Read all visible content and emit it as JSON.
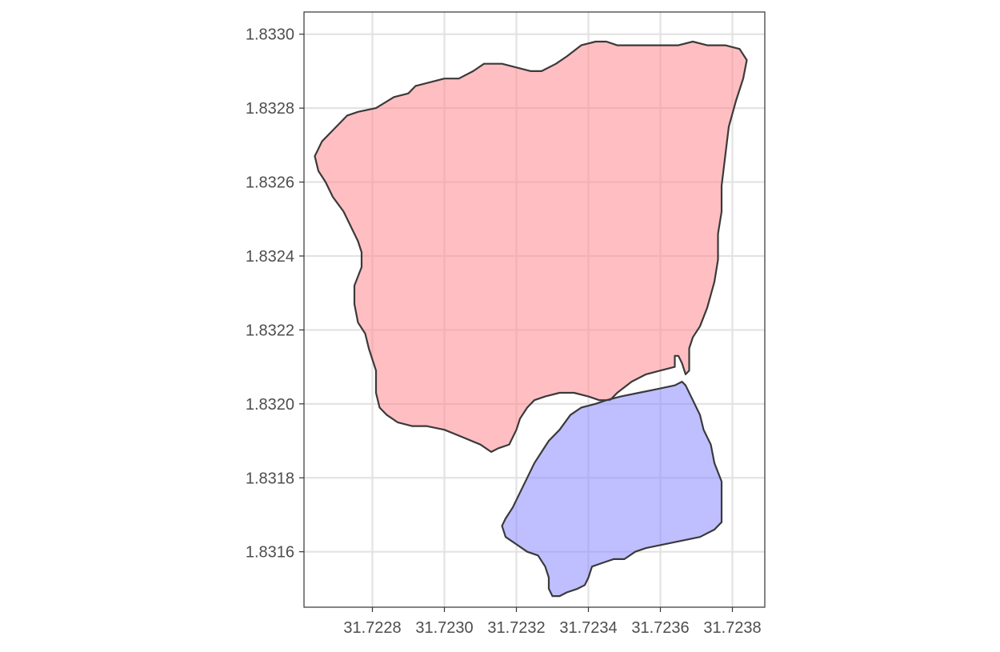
{
  "chart_data": {
    "type": "polygon-map",
    "xlim": [
      31.72261,
      31.72389
    ],
    "ylim": [
      1.83145,
      1.83306
    ],
    "x_ticks": [
      {
        "value": 31.7228,
        "label": "31.7228"
      },
      {
        "value": 31.723,
        "label": "31.7230"
      },
      {
        "value": 31.7232,
        "label": "31.7232"
      },
      {
        "value": 31.7234,
        "label": "31.7234"
      },
      {
        "value": 31.7236,
        "label": "31.7236"
      },
      {
        "value": 31.7238,
        "label": "31.7238"
      }
    ],
    "y_ticks": [
      {
        "value": 1.8316,
        "label": "1.8316"
      },
      {
        "value": 1.8318,
        "label": "1.8318"
      },
      {
        "value": 1.832,
        "label": "1.8320"
      },
      {
        "value": 1.8322,
        "label": "1.8322"
      },
      {
        "value": 1.8324,
        "label": "1.8324"
      },
      {
        "value": 1.8326,
        "label": "1.8326"
      },
      {
        "value": 1.8328,
        "label": "1.8328"
      },
      {
        "value": 1.833,
        "label": "1.8330"
      }
    ],
    "grid": true,
    "title": "",
    "xlabel": "",
    "ylabel": "",
    "polygons": [
      {
        "id": "red-region",
        "fill": "#ff8a8f",
        "opacity": 0.55,
        "stroke": "#3a3a3a",
        "points": [
          [
            31.72264,
            1.83267
          ],
          [
            31.72266,
            1.83271
          ],
          [
            31.72269,
            1.83274
          ],
          [
            31.72273,
            1.83278
          ],
          [
            31.72276,
            1.83279
          ],
          [
            31.72281,
            1.8328
          ],
          [
            31.72286,
            1.83283
          ],
          [
            31.7229,
            1.83284
          ],
          [
            31.72292,
            1.83286
          ],
          [
            31.72296,
            1.83287
          ],
          [
            31.723,
            1.83288
          ],
          [
            31.72304,
            1.83288
          ],
          [
            31.72308,
            1.8329
          ],
          [
            31.72311,
            1.83292
          ],
          [
            31.72316,
            1.83292
          ],
          [
            31.7232,
            1.83291
          ],
          [
            31.72324,
            1.8329
          ],
          [
            31.72327,
            1.8329
          ],
          [
            31.72331,
            1.83292
          ],
          [
            31.72334,
            1.83294
          ],
          [
            31.72338,
            1.83297
          ],
          [
            31.72342,
            1.83298
          ],
          [
            31.72345,
            1.83298
          ],
          [
            31.72348,
            1.83297
          ],
          [
            31.72353,
            1.83297
          ],
          [
            31.72358,
            1.83297
          ],
          [
            31.72361,
            1.83297
          ],
          [
            31.72365,
            1.83297
          ],
          [
            31.72369,
            1.83298
          ],
          [
            31.72373,
            1.83297
          ],
          [
            31.72378,
            1.83297
          ],
          [
            31.72382,
            1.83296
          ],
          [
            31.72384,
            1.83293
          ],
          [
            31.72383,
            1.83288
          ],
          [
            31.72381,
            1.83282
          ],
          [
            31.72379,
            1.83275
          ],
          [
            31.72378,
            1.83267
          ],
          [
            31.72377,
            1.83259
          ],
          [
            31.72377,
            1.83252
          ],
          [
            31.72376,
            1.83246
          ],
          [
            31.72376,
            1.83239
          ],
          [
            31.72375,
            1.83233
          ],
          [
            31.72373,
            1.83226
          ],
          [
            31.72371,
            1.83221
          ],
          [
            31.72369,
            1.83218
          ],
          [
            31.72368,
            1.83215
          ],
          [
            31.72368,
            1.83211
          ],
          [
            31.72368,
            1.83209
          ],
          [
            31.72367,
            1.83208
          ],
          [
            31.72366,
            1.83211
          ],
          [
            31.72365,
            1.83213
          ],
          [
            31.72364,
            1.83213
          ],
          [
            31.72364,
            1.8321
          ],
          [
            31.7236,
            1.83209
          ],
          [
            31.72356,
            1.83208
          ],
          [
            31.72352,
            1.83206
          ],
          [
            31.72348,
            1.83203
          ],
          [
            31.72346,
            1.83201
          ],
          [
            31.72343,
            1.83201
          ],
          [
            31.7234,
            1.83202
          ],
          [
            31.72336,
            1.83203
          ],
          [
            31.72332,
            1.83203
          ],
          [
            31.72328,
            1.83202
          ],
          [
            31.72325,
            1.83201
          ],
          [
            31.72323,
            1.83199
          ],
          [
            31.72321,
            1.83196
          ],
          [
            31.7232,
            1.83193
          ],
          [
            31.72318,
            1.83189
          ],
          [
            31.72315,
            1.83188
          ],
          [
            31.72313,
            1.83187
          ],
          [
            31.7231,
            1.83189
          ],
          [
            31.72305,
            1.83191
          ],
          [
            31.723,
            1.83193
          ],
          [
            31.72295,
            1.83194
          ],
          [
            31.72291,
            1.83194
          ],
          [
            31.72287,
            1.83195
          ],
          [
            31.72284,
            1.83197
          ],
          [
            31.72282,
            1.83199
          ],
          [
            31.72281,
            1.83203
          ],
          [
            31.72281,
            1.83209
          ],
          [
            31.72279,
            1.83215
          ],
          [
            31.72278,
            1.83219
          ],
          [
            31.72276,
            1.83222
          ],
          [
            31.72275,
            1.83227
          ],
          [
            31.72275,
            1.83232
          ],
          [
            31.72277,
            1.83237
          ],
          [
            31.72277,
            1.83241
          ],
          [
            31.72276,
            1.83244
          ],
          [
            31.72274,
            1.83248
          ],
          [
            31.72272,
            1.83252
          ],
          [
            31.72269,
            1.83256
          ],
          [
            31.72267,
            1.8326
          ],
          [
            31.72265,
            1.83263
          ]
        ]
      },
      {
        "id": "blue-region",
        "fill": "#8a8aff",
        "opacity": 0.55,
        "stroke": "#3a3a3a",
        "points": [
          [
            31.72345,
            1.83201
          ],
          [
            31.72349,
            1.83202
          ],
          [
            31.72354,
            1.83203
          ],
          [
            31.72359,
            1.83204
          ],
          [
            31.72364,
            1.83205
          ],
          [
            31.72366,
            1.83206
          ],
          [
            31.72367,
            1.83205
          ],
          [
            31.72369,
            1.83201
          ],
          [
            31.72371,
            1.83197
          ],
          [
            31.72372,
            1.83193
          ],
          [
            31.72374,
            1.83189
          ],
          [
            31.72375,
            1.83184
          ],
          [
            31.72377,
            1.83179
          ],
          [
            31.72377,
            1.83174
          ],
          [
            31.72377,
            1.83168
          ],
          [
            31.72375,
            1.83166
          ],
          [
            31.72371,
            1.83164
          ],
          [
            31.72366,
            1.83163
          ],
          [
            31.72361,
            1.83162
          ],
          [
            31.72356,
            1.83161
          ],
          [
            31.72353,
            1.8316
          ],
          [
            31.7235,
            1.83158
          ],
          [
            31.72347,
            1.83158
          ],
          [
            31.72344,
            1.83157
          ],
          [
            31.72341,
            1.83156
          ],
          [
            31.7234,
            1.83153
          ],
          [
            31.72339,
            1.83151
          ],
          [
            31.72337,
            1.8315
          ],
          [
            31.72334,
            1.83149
          ],
          [
            31.72332,
            1.83148
          ],
          [
            31.7233,
            1.83148
          ],
          [
            31.72329,
            1.8315
          ],
          [
            31.72329,
            1.83153
          ],
          [
            31.72328,
            1.83156
          ],
          [
            31.72326,
            1.83159
          ],
          [
            31.72323,
            1.8316
          ],
          [
            31.7232,
            1.83162
          ],
          [
            31.72317,
            1.83164
          ],
          [
            31.72316,
            1.83167
          ],
          [
            31.72317,
            1.83169
          ],
          [
            31.72319,
            1.83172
          ],
          [
            31.72321,
            1.83176
          ],
          [
            31.72323,
            1.8318
          ],
          [
            31.72325,
            1.83184
          ],
          [
            31.72327,
            1.83187
          ],
          [
            31.72329,
            1.8319
          ],
          [
            31.72332,
            1.83193
          ],
          [
            31.72335,
            1.83197
          ],
          [
            31.72338,
            1.83199
          ],
          [
            31.72342,
            1.832
          ]
        ]
      }
    ]
  }
}
